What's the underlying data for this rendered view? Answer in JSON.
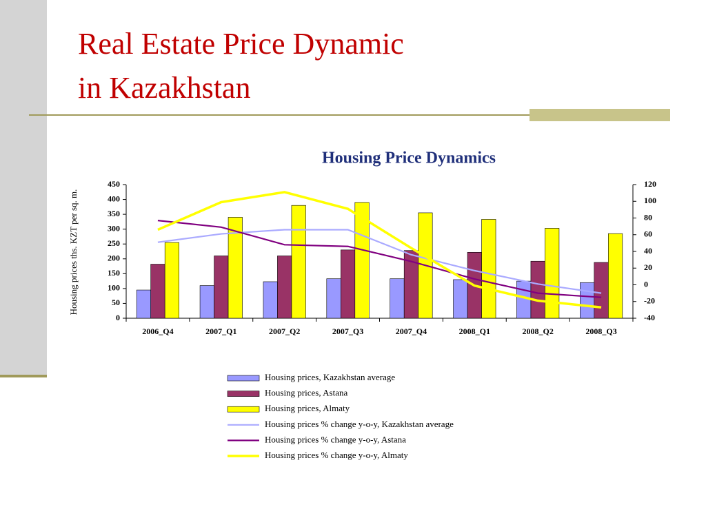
{
  "slide": {
    "title": [
      "Real Estate Price Dynamic",
      "in Kazakhstan"
    ]
  },
  "chart_data": {
    "type": "bar-line",
    "title": "Housing Price Dynamics",
    "ylabel": "Housing prices ths. KZT per sq. m.",
    "categories": [
      "2006_Q4",
      "2007_Q1",
      "2007_Q2",
      "2007_Q3",
      "2007_Q4",
      "2008_Q1",
      "2008_Q2",
      "2008_Q3"
    ],
    "ylim": [
      0,
      450
    ],
    "yticks": [
      0,
      50,
      100,
      150,
      200,
      250,
      300,
      350,
      400,
      450
    ],
    "y2lim": [
      -40,
      120
    ],
    "y2ticks": [
      -40,
      -20,
      0,
      20,
      40,
      60,
      80,
      100,
      120
    ],
    "series": [
      {
        "name": "Housing prices, Kazakhstan average",
        "type": "bar",
        "color": "#9999ff",
        "values": [
          95,
          110,
          123,
          133,
          133,
          130,
          125,
          120
        ]
      },
      {
        "name": "Housing prices, Astana",
        "type": "bar",
        "color": "#993366",
        "values": [
          182,
          210,
          210,
          230,
          228,
          222,
          192,
          188
        ]
      },
      {
        "name": "Housing prices, Almaty",
        "type": "bar",
        "color": "#ffff00",
        "values": [
          255,
          340,
          380,
          390,
          355,
          333,
          303,
          285
        ]
      },
      {
        "name": "Housing prices % change y-o-y, Kazakhstan average",
        "type": "line",
        "axis": "y2",
        "color": "#aaaaff",
        "values": [
          51,
          61,
          66,
          66,
          36,
          17,
          1,
          -10
        ]
      },
      {
        "name": "Housing prices % change y-o-y, Astana",
        "type": "line",
        "axis": "y2",
        "color": "#800080",
        "values": [
          77,
          69,
          48,
          46,
          28,
          7,
          -10,
          -15
        ]
      },
      {
        "name": "Housing prices % change y-o-y, Almaty",
        "type": "line",
        "axis": "y2",
        "color": "#ffff00",
        "values": [
          66,
          99,
          111,
          91,
          44,
          -1,
          -19,
          -27
        ]
      }
    ]
  }
}
